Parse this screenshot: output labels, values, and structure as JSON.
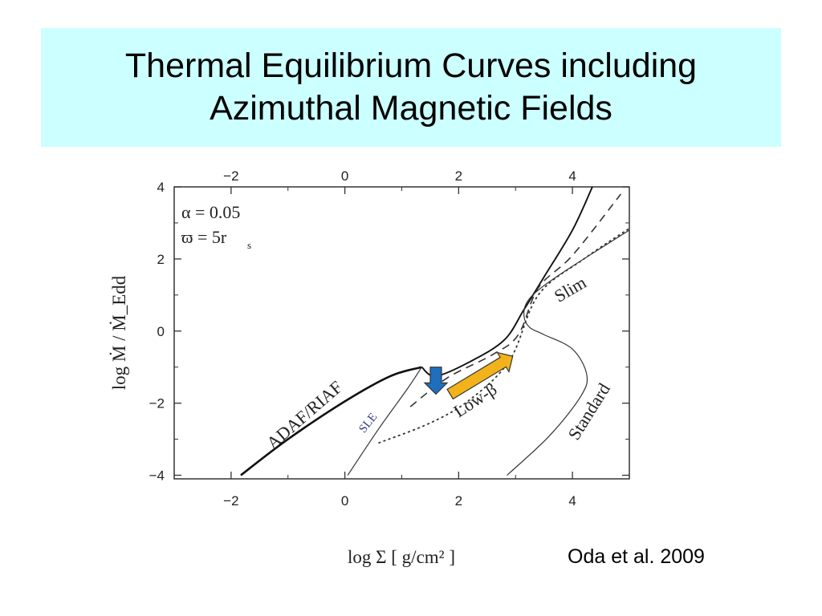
{
  "slide": {
    "title_line1": "Thermal Equilibrium Curves including",
    "title_line2": "Azimuthal Magnetic Fields",
    "citation": "Oda et al. 2009",
    "title_bg": "#ccffff"
  },
  "chart_data": {
    "type": "line",
    "title": "",
    "xlabel": "log Σ [ g/cm² ]",
    "ylabel": "log Ṁ / Ṁ_Edd",
    "xlim": [
      -3,
      5
    ],
    "ylim": [
      -4.1,
      4
    ],
    "xticks": [
      -2,
      0,
      2,
      4
    ],
    "yticks": [
      -4,
      -2,
      0,
      2,
      4
    ],
    "xtick_labels": [
      "−2",
      "0",
      "2",
      "4"
    ],
    "ytick_labels": [
      "−4",
      "−2",
      "0",
      "2",
      "4"
    ],
    "top_axis_ticks": [
      -2,
      0,
      2,
      4
    ],
    "top_axis_labels": [
      "−2",
      "0",
      "2",
      "4"
    ],
    "params": {
      "alpha": "α = 0.05",
      "radius": "ϖ = 5r",
      "radius_sub": "s"
    },
    "curve_labels": {
      "adaf": "ADAF/RIAF",
      "sle": "SLE",
      "low_beta": "Low-β",
      "slim": "Slim",
      "standard": "Standard"
    },
    "series": [
      {
        "name": "ADAF/RIAF",
        "style": "thick-solid",
        "x": [
          -1.83,
          -1.0,
          0.0,
          0.8,
          1.35
        ],
        "y": [
          -4.0,
          -3.0,
          -1.95,
          -1.25,
          -1.0
        ]
      },
      {
        "name": "",
        "style": "solid",
        "x": [
          1.35,
          1.6,
          2.2,
          2.8,
          3.15,
          3.5,
          4.0,
          4.35
        ],
        "y": [
          -1.0,
          -1.25,
          -0.85,
          -0.25,
          0.6,
          1.5,
          2.8,
          4.0
        ]
      },
      {
        "name": "",
        "style": "dashed",
        "x": [
          1.15,
          1.8,
          2.6,
          3.05,
          3.4,
          4.0,
          4.85
        ],
        "y": [
          -2.1,
          -1.3,
          -0.65,
          -0.1,
          1.2,
          2.1,
          3.8
        ]
      },
      {
        "name": "Low-β",
        "style": "dotted",
        "x": [
          0.6,
          1.5,
          2.2,
          2.9,
          3.4,
          4.2,
          5.0
        ],
        "y": [
          -3.1,
          -2.55,
          -1.9,
          -0.8,
          1.0,
          2.0,
          2.85
        ]
      },
      {
        "name": "SLE",
        "style": "thin-solid",
        "x": [
          0.05,
          0.6,
          1.1,
          1.35
        ],
        "y": [
          -4.0,
          -2.7,
          -1.6,
          -1.0
        ]
      },
      {
        "name": "Slim / Standard",
        "style": "thin-solid",
        "x": [
          2.85,
          3.6,
          4.15,
          4.25,
          4.0,
          3.5,
          3.25,
          3.15,
          3.2,
          3.45,
          4.0,
          5.0
        ],
        "y": [
          -4.0,
          -2.9,
          -1.8,
          -1.2,
          -0.5,
          -0.1,
          0.1,
          0.4,
          0.8,
          1.2,
          1.8,
          2.8
        ]
      }
    ],
    "arrows": [
      {
        "color": "#1f6fbf",
        "from": [
          1.6,
          -1.0
        ],
        "to": [
          1.6,
          -1.75
        ]
      },
      {
        "color": "#f2b21a",
        "from": [
          1.85,
          -1.75
        ],
        "to": [
          2.95,
          -0.7
        ]
      }
    ],
    "grid": false
  }
}
